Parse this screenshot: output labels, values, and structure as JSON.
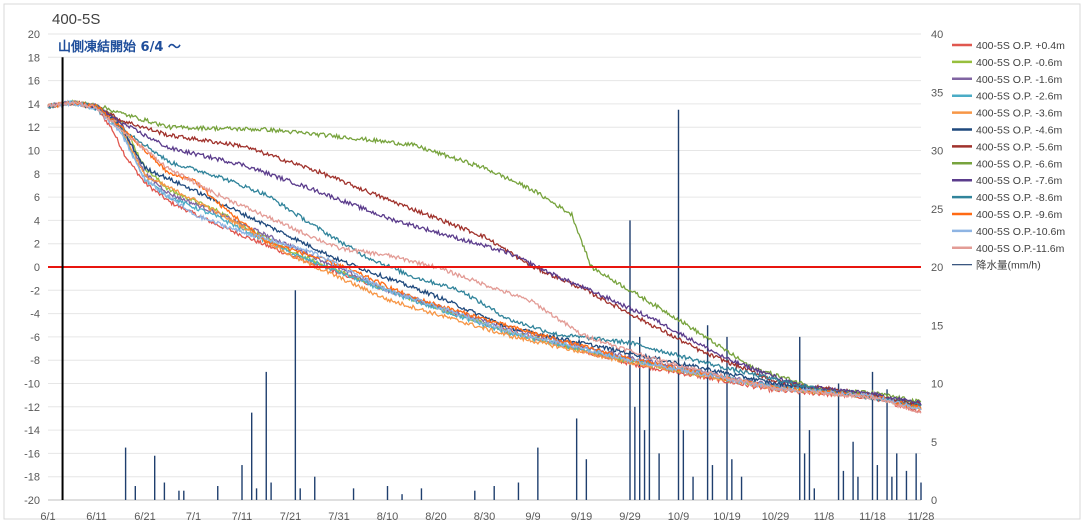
{
  "chart_data": {
    "type": "line",
    "title": "400-5S",
    "annotation": "山側凍結開始  6/4 ～",
    "x_tick_labels": [
      "6/1",
      "6/11",
      "6/21",
      "7/1",
      "7/11",
      "7/21",
      "7/31",
      "8/10",
      "8/20",
      "8/30",
      "9/9",
      "9/19",
      "9/29",
      "10/9",
      "10/19",
      "10/29",
      "11/8",
      "11/18",
      "11/28"
    ],
    "x_range_days": [
      0,
      180
    ],
    "freeze_start_day": 3,
    "y_left": {
      "range": [
        -20,
        20
      ],
      "ticks": [
        20,
        18,
        16,
        14,
        12,
        10,
        8,
        6,
        4,
        2,
        0,
        -2,
        -4,
        -6,
        -8,
        -10,
        -12,
        -14,
        -16,
        -18,
        -20
      ]
    },
    "y_right": {
      "range": [
        0,
        40
      ],
      "ticks": [
        40,
        35,
        30,
        25,
        20,
        15,
        10,
        5,
        0
      ]
    },
    "zero_line_color": "#e8150f",
    "series": [
      {
        "name": "400-5S O.P. +0.4m",
        "color": "#e0574f",
        "points": [
          [
            0,
            13.8
          ],
          [
            5,
            14.1
          ],
          [
            10,
            13.6
          ],
          [
            13,
            12.0
          ],
          [
            16,
            9.5
          ],
          [
            20,
            7.2
          ],
          [
            25,
            5.6
          ],
          [
            35,
            3.6
          ],
          [
            50,
            1.0
          ],
          [
            70,
            -2.0
          ],
          [
            95,
            -5.5
          ],
          [
            120,
            -8.3
          ],
          [
            150,
            -10.6
          ],
          [
            170,
            -11.2
          ],
          [
            180,
            -12.4
          ]
        ]
      },
      {
        "name": "400-5S O.P. -0.6m",
        "color": "#97bf3d",
        "points": [
          [
            0,
            13.8
          ],
          [
            5,
            14.1
          ],
          [
            10,
            13.8
          ],
          [
            15,
            12.6
          ],
          [
            20,
            8.5
          ],
          [
            25,
            6.6
          ],
          [
            35,
            4.8
          ],
          [
            50,
            1.3
          ],
          [
            70,
            -2.0
          ],
          [
            95,
            -5.6
          ],
          [
            120,
            -8.1
          ],
          [
            150,
            -10.4
          ],
          [
            170,
            -11.1
          ],
          [
            180,
            -12.1
          ]
        ]
      },
      {
        "name": "400-5S O.P. -1.6m",
        "color": "#8064a2",
        "points": [
          [
            0,
            13.8
          ],
          [
            5,
            14.1
          ],
          [
            10,
            13.8
          ],
          [
            15,
            12.4
          ],
          [
            20,
            8.0
          ],
          [
            25,
            6.3
          ],
          [
            35,
            4.6
          ],
          [
            50,
            1.8
          ],
          [
            70,
            -2.0
          ],
          [
            95,
            -5.3
          ],
          [
            120,
            -7.8
          ],
          [
            150,
            -10.2
          ],
          [
            170,
            -11.0
          ],
          [
            180,
            -11.9
          ]
        ]
      },
      {
        "name": "400-5S O.P. -2.6m",
        "color": "#4bacc6",
        "points": [
          [
            0,
            13.8
          ],
          [
            5,
            14.1
          ],
          [
            10,
            13.6
          ],
          [
            15,
            11.8
          ],
          [
            20,
            7.5
          ],
          [
            25,
            6.0
          ],
          [
            35,
            4.3
          ],
          [
            50,
            1.2
          ],
          [
            70,
            -2.1
          ],
          [
            95,
            -5.7
          ],
          [
            120,
            -8.0
          ],
          [
            150,
            -10.3
          ],
          [
            170,
            -11.0
          ],
          [
            180,
            -12.0
          ]
        ]
      },
      {
        "name": "400-5S O.P. -3.6m",
        "color": "#f79646",
        "points": [
          [
            0,
            13.8
          ],
          [
            5,
            14.1
          ],
          [
            10,
            13.7
          ],
          [
            15,
            12.0
          ],
          [
            20,
            7.8
          ],
          [
            30,
            5.8
          ],
          [
            40,
            3.5
          ],
          [
            50,
            1.0
          ],
          [
            70,
            -2.8
          ],
          [
            95,
            -5.9
          ],
          [
            120,
            -8.2
          ],
          [
            150,
            -10.4
          ],
          [
            170,
            -11.1
          ],
          [
            180,
            -12.2
          ]
        ]
      },
      {
        "name": "400-5S O.P. -4.6m",
        "color": "#1f497d",
        "points": [
          [
            0,
            13.8
          ],
          [
            5,
            14.1
          ],
          [
            10,
            13.7
          ],
          [
            15,
            12.0
          ],
          [
            20,
            8.5
          ],
          [
            30,
            6.6
          ],
          [
            45,
            3.6
          ],
          [
            60,
            0.6
          ],
          [
            80,
            -2.5
          ],
          [
            95,
            -5.2
          ],
          [
            120,
            -7.4
          ],
          [
            150,
            -10.0
          ],
          [
            170,
            -11.0
          ],
          [
            180,
            -11.8
          ]
        ]
      },
      {
        "name": "400-5S O.P. -5.6m",
        "color": "#a0322c",
        "points": [
          [
            0,
            13.8
          ],
          [
            5,
            14.1
          ],
          [
            10,
            13.8
          ],
          [
            15,
            12.6
          ],
          [
            25,
            11.3
          ],
          [
            40,
            10.4
          ],
          [
            55,
            8.3
          ],
          [
            70,
            5.8
          ],
          [
            80,
            4.2
          ],
          [
            90,
            2.6
          ],
          [
            100,
            0.0
          ],
          [
            110,
            -1.8
          ],
          [
            120,
            -4.0
          ],
          [
            135,
            -7.3
          ],
          [
            150,
            -9.8
          ],
          [
            170,
            -11.0
          ],
          [
            180,
            -11.8
          ]
        ]
      },
      {
        "name": "400-5S O.P. -6.6m",
        "color": "#77a33d",
        "points": [
          [
            0,
            13.8
          ],
          [
            5,
            14.1
          ],
          [
            10,
            13.9
          ],
          [
            15,
            13.2
          ],
          [
            25,
            12.0
          ],
          [
            45,
            11.8
          ],
          [
            60,
            11.2
          ],
          [
            75,
            10.5
          ],
          [
            90,
            8.5
          ],
          [
            100,
            6.6
          ],
          [
            108,
            4.5
          ],
          [
            112,
            0.0
          ],
          [
            118,
            -1.5
          ],
          [
            130,
            -4.5
          ],
          [
            145,
            -8.6
          ],
          [
            160,
            -10.6
          ],
          [
            170,
            -10.8
          ],
          [
            180,
            -11.6
          ]
        ]
      },
      {
        "name": "400-5S O.P. -7.6m",
        "color": "#5b3c8c",
        "points": [
          [
            0,
            13.8
          ],
          [
            5,
            14.1
          ],
          [
            10,
            13.8
          ],
          [
            15,
            12.4
          ],
          [
            25,
            10.2
          ],
          [
            40,
            8.8
          ],
          [
            55,
            6.6
          ],
          [
            70,
            4.2
          ],
          [
            85,
            2.4
          ],
          [
            95,
            1.2
          ],
          [
            105,
            -0.8
          ],
          [
            115,
            -2.6
          ],
          [
            125,
            -4.5
          ],
          [
            140,
            -7.9
          ],
          [
            155,
            -10.2
          ],
          [
            170,
            -10.9
          ],
          [
            180,
            -11.7
          ]
        ]
      },
      {
        "name": "400-5S O.P. -8.6m",
        "color": "#31849b",
        "points": [
          [
            0,
            13.8
          ],
          [
            5,
            14.1
          ],
          [
            10,
            13.8
          ],
          [
            15,
            12.0
          ],
          [
            25,
            9.0
          ],
          [
            35,
            7.8
          ],
          [
            45,
            6.2
          ],
          [
            55,
            3.5
          ],
          [
            65,
            1.0
          ],
          [
            75,
            -0.8
          ],
          [
            85,
            -2.0
          ],
          [
            95,
            -4.5
          ],
          [
            105,
            -5.8
          ],
          [
            120,
            -6.5
          ],
          [
            140,
            -8.7
          ],
          [
            160,
            -10.6
          ],
          [
            180,
            -11.9
          ]
        ]
      },
      {
        "name": "400-5S O.P. -9.6m",
        "color": "#ff6a14",
        "points": [
          [
            0,
            13.8
          ],
          [
            5,
            14.1
          ],
          [
            10,
            13.8
          ],
          [
            15,
            12.0
          ],
          [
            25,
            8.0
          ],
          [
            30,
            7.5
          ],
          [
            35,
            5.5
          ],
          [
            45,
            2.2
          ],
          [
            60,
            0.2
          ],
          [
            75,
            -2.6
          ],
          [
            95,
            -5.1
          ],
          [
            120,
            -7.9
          ],
          [
            150,
            -10.4
          ],
          [
            170,
            -11.1
          ],
          [
            180,
            -12.1
          ]
        ]
      },
      {
        "name": "400-5S O.P.-10.6m",
        "color": "#8eb4e3",
        "points": [
          [
            0,
            13.8
          ],
          [
            5,
            14.1
          ],
          [
            10,
            13.6
          ],
          [
            15,
            11.5
          ],
          [
            20,
            7.5
          ],
          [
            30,
            4.5
          ],
          [
            40,
            3.0
          ],
          [
            55,
            1.2
          ],
          [
            70,
            -2.0
          ],
          [
            95,
            -5.5
          ],
          [
            120,
            -8.0
          ],
          [
            150,
            -10.4
          ],
          [
            170,
            -11.1
          ],
          [
            180,
            -12.2
          ]
        ]
      },
      {
        "name": "400-5S O.P.-11.6m",
        "color": "#e39c96",
        "points": [
          [
            0,
            13.8
          ],
          [
            5,
            14.1
          ],
          [
            10,
            13.7
          ],
          [
            15,
            11.8
          ],
          [
            25,
            8.4
          ],
          [
            35,
            6.2
          ],
          [
            50,
            3.4
          ],
          [
            60,
            1.6
          ],
          [
            70,
            1.0
          ],
          [
            80,
            0.0
          ],
          [
            90,
            -1.5
          ],
          [
            100,
            -3.0
          ],
          [
            110,
            -5.8
          ],
          [
            125,
            -7.9
          ],
          [
            150,
            -10.5
          ],
          [
            170,
            -11.2
          ],
          [
            180,
            -12.5
          ]
        ]
      },
      {
        "name": "降水量(mm/h)",
        "color": "#1f3f6e",
        "axis": "right",
        "bars": [
          [
            16,
            4.5
          ],
          [
            18,
            1.2
          ],
          [
            22,
            3.8
          ],
          [
            24,
            1.5
          ],
          [
            27,
            0.8
          ],
          [
            28,
            0.8
          ],
          [
            35,
            1.2
          ],
          [
            40,
            3.0
          ],
          [
            42,
            7.5
          ],
          [
            43,
            1.0
          ],
          [
            45,
            11
          ],
          [
            46,
            1.5
          ],
          [
            51,
            18
          ],
          [
            52,
            1.0
          ],
          [
            55,
            2.0
          ],
          [
            63,
            1.0
          ],
          [
            70,
            1.2
          ],
          [
            73,
            0.5
          ],
          [
            77,
            1.0
          ],
          [
            88,
            0.8
          ],
          [
            92,
            1.2
          ],
          [
            97,
            1.5
          ],
          [
            101,
            4.5
          ],
          [
            109,
            7.0
          ],
          [
            111,
            3.5
          ],
          [
            120,
            24
          ],
          [
            121,
            8.0
          ],
          [
            122,
            14
          ],
          [
            123,
            6.0
          ],
          [
            124,
            12
          ],
          [
            126,
            4.0
          ],
          [
            130,
            33.5
          ],
          [
            131,
            6.0
          ],
          [
            133,
            2.0
          ],
          [
            136,
            15
          ],
          [
            137,
            3.0
          ],
          [
            140,
            14
          ],
          [
            141,
            3.5
          ],
          [
            143,
            2.0
          ],
          [
            155,
            14
          ],
          [
            156,
            4.0
          ],
          [
            157,
            6.0
          ],
          [
            158,
            1.0
          ],
          [
            163,
            10
          ],
          [
            164,
            2.5
          ],
          [
            166,
            5.0
          ],
          [
            167,
            2.0
          ],
          [
            170,
            11
          ],
          [
            171,
            3.0
          ],
          [
            173,
            9.5
          ],
          [
            174,
            2.0
          ],
          [
            175,
            4.0
          ],
          [
            177,
            2.5
          ],
          [
            179,
            4.0
          ],
          [
            180,
            1.5
          ]
        ]
      }
    ]
  }
}
